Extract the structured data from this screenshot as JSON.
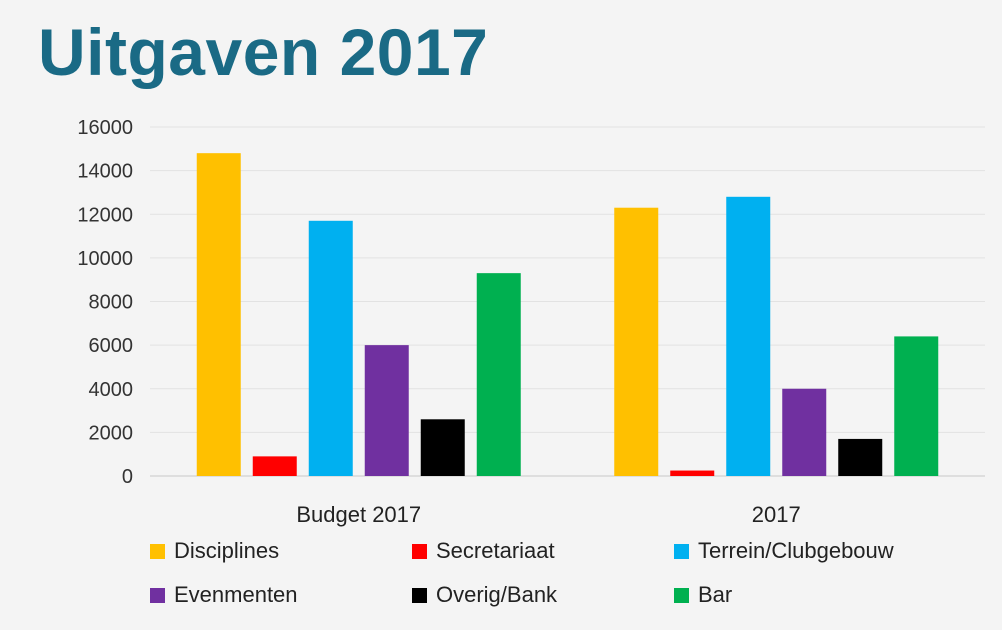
{
  "title": "Uitgaven 2017",
  "chart_data": {
    "type": "bar",
    "title": "Uitgaven 2017",
    "xlabel": "",
    "ylabel": "",
    "categories": [
      "Budget 2017",
      "2017"
    ],
    "ylim": [
      0,
      16000
    ],
    "yticks": [
      0,
      2000,
      4000,
      6000,
      8000,
      10000,
      12000,
      14000,
      16000
    ],
    "grid": true,
    "legend_position": "bottom",
    "series": [
      {
        "name": "Disciplines",
        "color": "#ffc000",
        "values": [
          14800,
          12300
        ]
      },
      {
        "name": "Secretariaat",
        "color": "#ff0000",
        "values": [
          900,
          250
        ]
      },
      {
        "name": "Terrein/Clubgebouw",
        "color": "#00b0f0",
        "values": [
          11700,
          12800
        ]
      },
      {
        "name": "Evenmenten",
        "color": "#7030a0",
        "values": [
          6000,
          4000
        ]
      },
      {
        "name": "Overig/Bank",
        "color": "#000000",
        "values": [
          2600,
          1700
        ]
      },
      {
        "name": "Bar",
        "color": "#00b050",
        "values": [
          9300,
          6400
        ]
      }
    ]
  }
}
